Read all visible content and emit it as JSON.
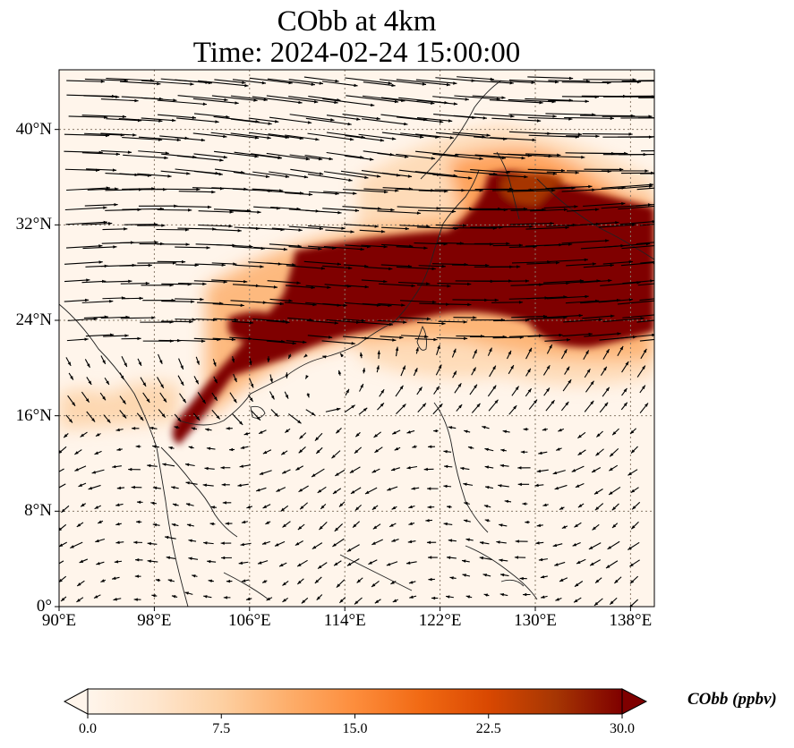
{
  "figure": {
    "title_line1": "CObb at 4km",
    "title_line2": "Time: 2024-02-24 15:00:00"
  },
  "map": {
    "lon_range": [
      90,
      140
    ],
    "lat_range": [
      0,
      45
    ],
    "lon_ticks": [
      {
        "value": 90,
        "label": "90°E"
      },
      {
        "value": 98,
        "label": "98°E"
      },
      {
        "value": 106,
        "label": "106°E"
      },
      {
        "value": 114,
        "label": "114°E"
      },
      {
        "value": 122,
        "label": "122°E"
      },
      {
        "value": 130,
        "label": "130°E"
      },
      {
        "value": 138,
        "label": "138°E"
      }
    ],
    "lat_ticks": [
      {
        "value": 0,
        "label": "0°"
      },
      {
        "value": 8,
        "label": "8°N"
      },
      {
        "value": 16,
        "label": "16°N"
      },
      {
        "value": 24,
        "label": "24°N"
      },
      {
        "value": 32,
        "label": "32°N"
      },
      {
        "value": 40,
        "label": "40°N"
      }
    ],
    "gridlines": true,
    "gridline_color": "#8a7a6a",
    "background_color": "#fff5eb",
    "plume_color_max": "#7f0000",
    "vector_color": "#000000"
  },
  "colorbar": {
    "label": "CObb (ppbv)",
    "min": 0.0,
    "max": 30.0,
    "ticks": [
      {
        "value": 0,
        "label": "0.0"
      },
      {
        "value": 7.5,
        "label": "7.5"
      },
      {
        "value": 15,
        "label": "15.0"
      },
      {
        "value": 22.5,
        "label": "22.5"
      },
      {
        "value": 30,
        "label": "30.0"
      }
    ],
    "extend": "both",
    "colormap": [
      "#fff5eb",
      "#fee6ce",
      "#fdd0a2",
      "#fdae6b",
      "#fd8d3c",
      "#f16913",
      "#d94801",
      "#a63603",
      "#7f0000"
    ]
  }
}
